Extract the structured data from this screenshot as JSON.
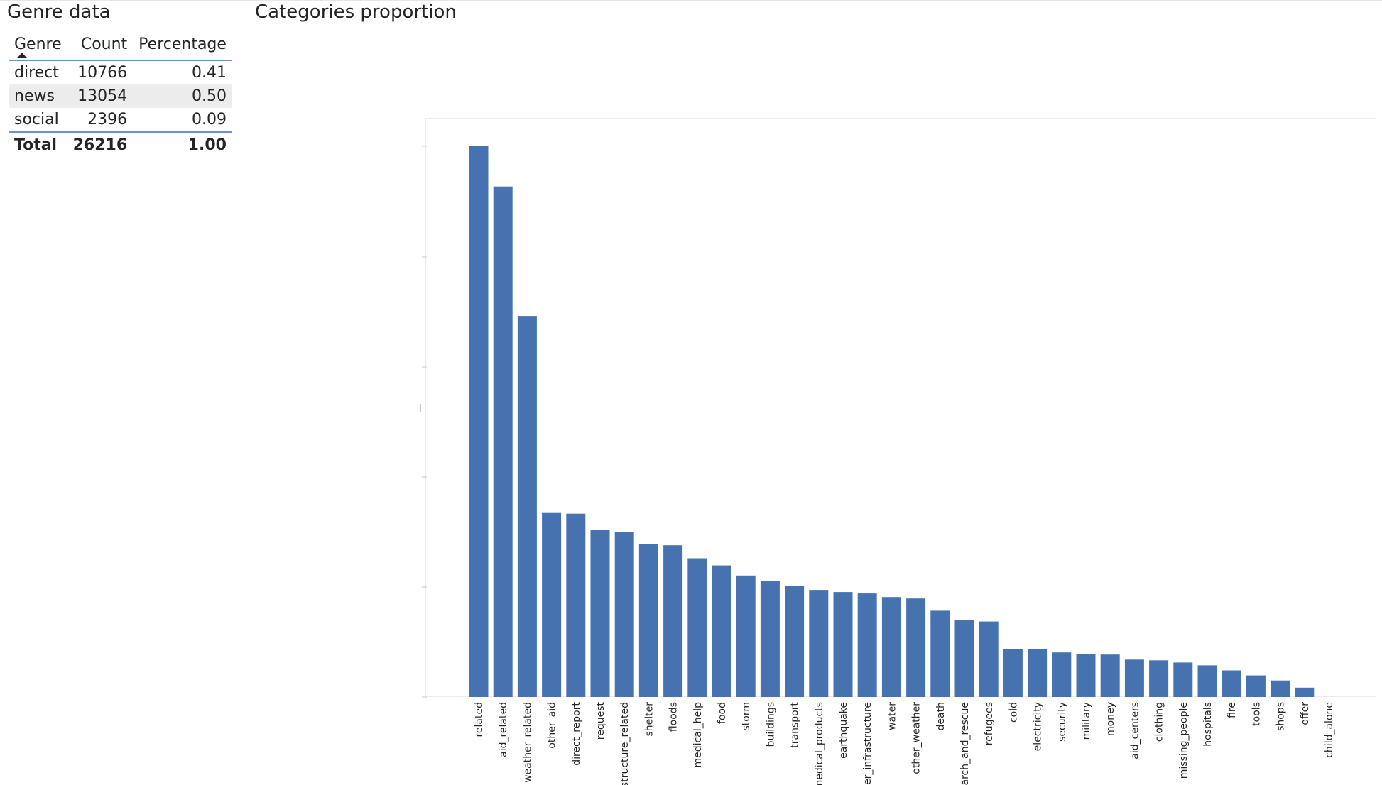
{
  "genre_panel": {
    "title": "Genre data",
    "columns": [
      "Genre",
      "Count",
      "Percentage"
    ],
    "rows": [
      {
        "genre": "direct",
        "count": "10766",
        "percentage": "0.41"
      },
      {
        "genre": "news",
        "count": "13054",
        "percentage": "0.50"
      },
      {
        "genre": "social",
        "count": "2396",
        "percentage": "0.09"
      }
    ],
    "total": {
      "label": "Total",
      "count": "26216",
      "percentage": "1.00"
    }
  },
  "chart_data": {
    "type": "bar",
    "title": "Categories proportion",
    "xlabel": "",
    "ylabel": "",
    "ylim": [
      0,
      1
    ],
    "grid": false,
    "color": "#4673b0",
    "categories": [
      "related",
      "aid_related",
      "weather_related",
      "other_aid",
      "direct_report",
      "request",
      "infrastructure_related",
      "shelter",
      "floods",
      "medical_help",
      "food",
      "storm",
      "buildings",
      "transport",
      "medical_products",
      "earthquake",
      "other_infrastructure",
      "water",
      "other_weather",
      "death",
      "search_and_rescue",
      "refugees",
      "cold",
      "electricity",
      "security",
      "military",
      "money",
      "aid_centers",
      "clothing",
      "missing_people",
      "hospitals",
      "fire",
      "tools",
      "shops",
      "offer",
      "child_alone"
    ],
    "values": [
      0.766,
      0.71,
      0.53,
      0.256,
      0.255,
      0.232,
      0.23,
      0.213,
      0.211,
      0.193,
      0.183,
      0.169,
      0.161,
      0.155,
      0.149,
      0.146,
      0.144,
      0.139,
      0.137,
      0.12,
      0.107,
      0.105,
      0.067,
      0.067,
      0.062,
      0.06,
      0.059,
      0.052,
      0.051,
      0.048,
      0.044,
      0.037,
      0.03,
      0.023,
      0.013,
      0.0
    ]
  }
}
